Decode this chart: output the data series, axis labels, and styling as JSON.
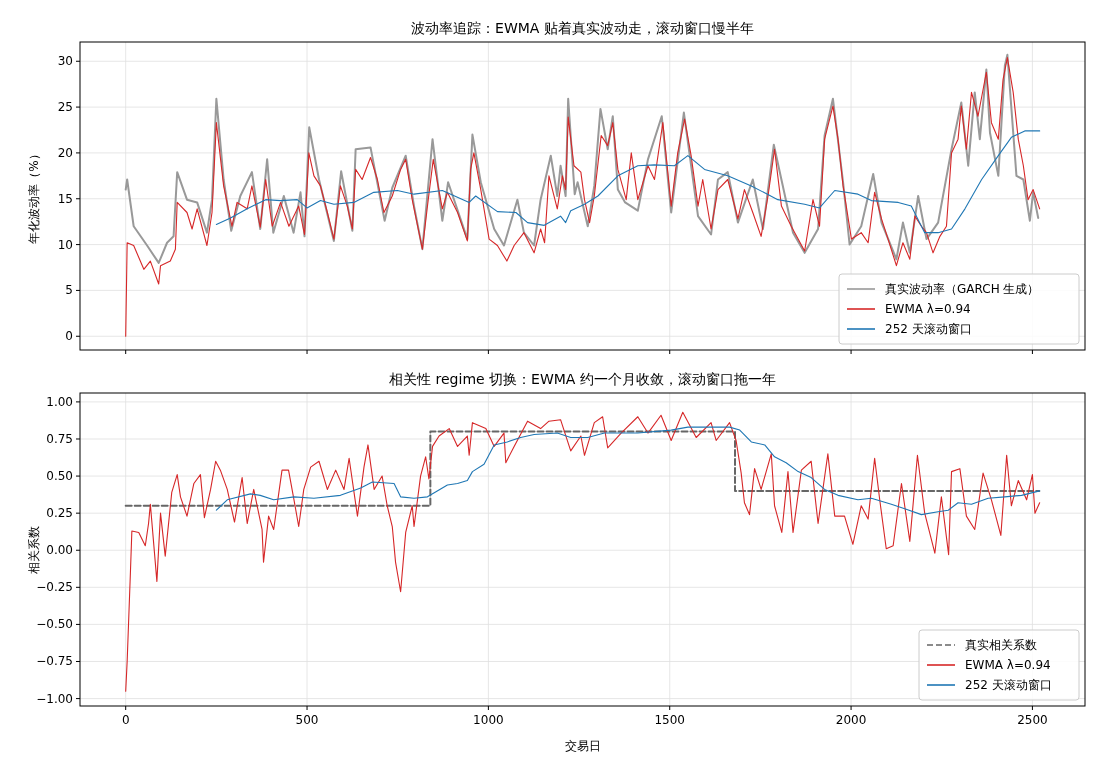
{
  "chart_data": [
    {
      "type": "line",
      "title": "波动率追踪：EWMA 贴着真实波动走，滚动窗口慢半年",
      "ylabel": "年化波动率（%）",
      "xlim": [
        -126,
        2645
      ],
      "xticks": [
        0,
        500,
        1000,
        1500,
        2000,
        2500
      ],
      "ylim": [
        -1.5,
        32.1
      ],
      "yticks": [
        0,
        5,
        10,
        15,
        20,
        25,
        30
      ],
      "grid": true,
      "legend": "bottom right",
      "tick_labels": "y",
      "line_style": "solid",
      "series": [
        {
          "name": "真实波动率（GARCH 生成）",
          "color": "#999999",
          "x": [
            0,
            4,
            22,
            59,
            91,
            114,
            132,
            142,
            169,
            197,
            224,
            238,
            250,
            270,
            291,
            316,
            348,
            371,
            390,
            407,
            436,
            463,
            482,
            493,
            506,
            533,
            574,
            594,
            625,
            634,
            675,
            714,
            735,
            772,
            795,
            818,
            846,
            873,
            889,
            942,
            956,
            979,
            1016,
            1043,
            1080,
            1098,
            1126,
            1144,
            1172,
            1190,
            1199,
            1213,
            1220,
            1238,
            1246,
            1274,
            1292,
            1309,
            1329,
            1343,
            1357,
            1377,
            1412,
            1440,
            1478,
            1504,
            1539,
            1578,
            1614,
            1633,
            1660,
            1688,
            1729,
            1757,
            1787,
            1840,
            1872,
            1909,
            1927,
            1950,
            1978,
            1996,
            2028,
            2061,
            2084,
            2125,
            2143,
            2162,
            2185,
            2208,
            2240,
            2277,
            2304,
            2323,
            2341,
            2355,
            2373,
            2383,
            2406,
            2424,
            2431,
            2456,
            2475,
            2493,
            2502,
            2516
          ],
          "values": [
            16.0,
            17.1,
            12.0,
            9.9,
            8.0,
            10.2,
            10.9,
            17.9,
            14.9,
            14.6,
            11.3,
            14.9,
            25.9,
            17.1,
            11.5,
            15.3,
            17.9,
            11.7,
            19.3,
            11.3,
            15.3,
            11.3,
            15.7,
            10.9,
            22.8,
            17.1,
            10.4,
            18.0,
            11.5,
            20.4,
            20.6,
            12.6,
            16.2,
            19.7,
            14.2,
            9.5,
            21.5,
            12.6,
            16.8,
            10.6,
            22.0,
            16.8,
            11.7,
            9.9,
            14.9,
            11.3,
            9.9,
            14.9,
            19.7,
            15.3,
            18.6,
            15.3,
            25.9,
            15.5,
            16.8,
            12.0,
            16.4,
            24.8,
            20.4,
            24.0,
            16.0,
            14.6,
            13.7,
            19.3,
            24.0,
            13.5,
            24.4,
            13.1,
            11.1,
            17.1,
            17.9,
            12.4,
            17.1,
            11.7,
            20.9,
            11.3,
            9.1,
            11.7,
            21.9,
            25.9,
            16.8,
            10.0,
            12.0,
            17.7,
            12.4,
            8.4,
            12.4,
            9.1,
            15.3,
            10.6,
            12.4,
            20.4,
            25.5,
            18.6,
            26.6,
            21.5,
            29.1,
            22.2,
            17.5,
            29.5,
            30.7,
            17.5,
            17.1,
            12.6,
            15.7,
            12.9
          ]
        },
        {
          "name": "EWMA λ=0.94",
          "color": "#d62728",
          "x": [
            0,
            4,
            22,
            50,
            68,
            91,
            96,
            123,
            137,
            142,
            169,
            183,
            197,
            224,
            238,
            250,
            270,
            293,
            307,
            335,
            348,
            371,
            386,
            404,
            427,
            450,
            477,
            493,
            505,
            519,
            537,
            556,
            574,
            592,
            611,
            625,
            634,
            652,
            675,
            694,
            712,
            735,
            758,
            772,
            790,
            818,
            832,
            848,
            873,
            887,
            915,
            942,
            951,
            960,
            979,
            1002,
            1025,
            1051,
            1071,
            1098,
            1126,
            1144,
            1155,
            1167,
            1190,
            1204,
            1213,
            1220,
            1236,
            1255,
            1265,
            1279,
            1292,
            1311,
            1329,
            1343,
            1357,
            1380,
            1394,
            1412,
            1440,
            1458,
            1481,
            1504,
            1522,
            1541,
            1559,
            1578,
            1591,
            1614,
            1633,
            1660,
            1688,
            1706,
            1729,
            1752,
            1771,
            1789,
            1808,
            1835,
            1872,
            1895,
            1913,
            1927,
            1950,
            1964,
            1978,
            2001,
            2028,
            2047,
            2065,
            2084,
            2102,
            2125,
            2143,
            2162,
            2176,
            2194,
            2208,
            2226,
            2245,
            2263,
            2277,
            2295,
            2304,
            2318,
            2332,
            2350,
            2373,
            2387,
            2406,
            2419,
            2431,
            2447,
            2461,
            2475,
            2488,
            2502,
            2520
          ],
          "values": [
            0,
            10.2,
            9.9,
            7.3,
            8.2,
            5.7,
            7.7,
            8.2,
            9.5,
            14.6,
            13.5,
            11.7,
            13.9,
            9.9,
            13.5,
            23.3,
            16.4,
            12.0,
            14.6,
            13.9,
            16.4,
            11.9,
            17.1,
            12.0,
            14.6,
            12.0,
            14.2,
            11.1,
            20.0,
            17.5,
            16.4,
            13.5,
            10.6,
            16.4,
            14.2,
            11.7,
            18.2,
            17.1,
            19.5,
            17.1,
            13.5,
            15.3,
            18.2,
            19.3,
            14.9,
            9.5,
            14.2,
            19.3,
            13.9,
            15.7,
            13.5,
            10.4,
            18.2,
            20.0,
            16.0,
            10.6,
            9.9,
            8.2,
            9.9,
            11.3,
            9.1,
            11.7,
            10.2,
            17.5,
            13.9,
            17.5,
            16.0,
            23.9,
            18.6,
            17.9,
            14.9,
            12.4,
            15.3,
            21.9,
            20.8,
            23.3,
            18.2,
            14.9,
            20.0,
            14.9,
            18.6,
            17.1,
            23.3,
            14.2,
            20.0,
            23.7,
            19.7,
            14.2,
            17.1,
            11.7,
            16.0,
            17.1,
            12.8,
            16.0,
            13.5,
            10.9,
            15.3,
            20.4,
            14.2,
            12.0,
            9.3,
            14.9,
            12.0,
            21.5,
            25.1,
            21.5,
            16.4,
            10.6,
            11.3,
            10.2,
            15.7,
            12.8,
            10.6,
            7.7,
            10.2,
            8.4,
            13.1,
            12.0,
            11.3,
            9.1,
            10.9,
            12.0,
            20.0,
            21.5,
            25.1,
            20.4,
            26.6,
            24.0,
            28.8,
            23.3,
            21.5,
            28.0,
            30.4,
            26.6,
            21.5,
            18.6,
            14.9,
            16.0,
            13.9
          ]
        },
        {
          "name": "252 天滚动窗口",
          "color": "#1f77b4",
          "x": [
            250,
            289,
            335,
            386,
            427,
            473,
            500,
            537,
            574,
            629,
            684,
            749,
            795,
            873,
            947,
            965,
            1025,
            1076,
            1108,
            1154,
            1199,
            1213,
            1227,
            1255,
            1265,
            1302,
            1357,
            1412,
            1458,
            1513,
            1550,
            1596,
            1660,
            1725,
            1798,
            1872,
            1913,
            1955,
            2019,
            2056,
            2130,
            2166,
            2203,
            2240,
            2277,
            2314,
            2360,
            2406,
            2442,
            2479,
            2520
          ],
          "values": [
            12.2,
            12.9,
            13.9,
            14.9,
            14.8,
            14.9,
            14.0,
            14.8,
            14.4,
            14.6,
            15.7,
            15.9,
            15.5,
            15.9,
            14.6,
            15.3,
            13.6,
            13.5,
            12.4,
            12.1,
            13.1,
            12.4,
            13.7,
            14.2,
            14.4,
            15.3,
            17.5,
            18.6,
            18.7,
            18.6,
            19.7,
            18.2,
            17.5,
            16.4,
            14.9,
            14.4,
            14.0,
            15.9,
            15.5,
            14.8,
            14.6,
            14.2,
            11.3,
            11.3,
            11.7,
            13.9,
            17.1,
            19.7,
            21.7,
            22.4,
            22.4
          ]
        }
      ]
    },
    {
      "type": "line",
      "title": "相关性 regime 切换：EWMA 约一个月收敛，滚动窗口拖一年",
      "xlabel": "交易日",
      "ylabel": "相关系数",
      "xlim": [
        -126,
        2645
      ],
      "xticks": [
        0,
        500,
        1000,
        1500,
        2000,
        2500
      ],
      "ylim": [
        -1.05,
        1.06
      ],
      "yticks": [
        {
          "value": -1,
          "label": "−1.00"
        },
        {
          "value": -0.75,
          "label": "−0.75"
        },
        {
          "value": -0.5,
          "label": "−0.50"
        },
        {
          "value": -0.25,
          "label": "−0.25"
        },
        {
          "value": 0,
          "label": "0.00"
        },
        {
          "value": 0.25,
          "label": "0.25"
        },
        {
          "value": 0.5,
          "label": "0.50"
        },
        {
          "value": 0.75,
          "label": "0.75"
        },
        {
          "value": 1,
          "label": "1.00"
        }
      ],
      "grid": true,
      "legend": "bottom right",
      "series": [
        {
          "name": "真实相关系数",
          "type": "step",
          "color": "#666666",
          "line_style": "dashed",
          "x": [
            0,
            840,
            1680,
            2519
          ],
          "values": [
            0.3,
            0.8,
            0.4,
            0.4
          ]
        },
        {
          "name": "EWMA λ=0.94",
          "color": "#d62728",
          "x": [
            0,
            4,
            13,
            17,
            36,
            54,
            63,
            68,
            86,
            96,
            109,
            127,
            142,
            151,
            169,
            188,
            206,
            217,
            234,
            248,
            261,
            280,
            300,
            321,
            335,
            353,
            376,
            380,
            394,
            408,
            431,
            449,
            464,
            477,
            491,
            510,
            533,
            556,
            579,
            602,
            616,
            639,
            657,
            668,
            685,
            707,
            721,
            735,
            744,
            758,
            772,
            790,
            795,
            813,
            827,
            836,
            846,
            864,
            892,
            915,
            942,
            947,
            956,
            993,
            1016,
            1043,
            1048,
            1071,
            1108,
            1144,
            1167,
            1199,
            1227,
            1255,
            1265,
            1292,
            1315,
            1329,
            1366,
            1412,
            1440,
            1476,
            1504,
            1536,
            1573,
            1614,
            1628,
            1665,
            1683,
            1697,
            1706,
            1720,
            1734,
            1752,
            1780,
            1789,
            1809,
            1826,
            1840,
            1863,
            1890,
            1909,
            1936,
            1955,
            1982,
            2005,
            2028,
            2047,
            2065,
            2079,
            2097,
            2116,
            2139,
            2162,
            2183,
            2203,
            2231,
            2249,
            2269,
            2277,
            2300,
            2318,
            2341,
            2364,
            2387,
            2413,
            2429,
            2442,
            2461,
            2484,
            2500,
            2507,
            2520
          ],
          "values": [
            -0.95,
            -0.75,
            -0.15,
            0.13,
            0.12,
            0.03,
            0.18,
            0.31,
            -0.21,
            0.25,
            -0.04,
            0.39,
            0.51,
            0.36,
            0.23,
            0.45,
            0.51,
            0.22,
            0.41,
            0.6,
            0.54,
            0.41,
            0.19,
            0.49,
            0.18,
            0.41,
            0.14,
            -0.08,
            0.23,
            0.14,
            0.54,
            0.54,
            0.34,
            0.16,
            0.41,
            0.56,
            0.6,
            0.41,
            0.54,
            0.41,
            0.62,
            0.23,
            0.56,
            0.71,
            0.41,
            0.5,
            0.3,
            0.16,
            -0.08,
            -0.28,
            0.12,
            0.3,
            0.16,
            0.5,
            0.63,
            0.48,
            0.7,
            0.77,
            0.82,
            0.7,
            0.77,
            0.64,
            0.86,
            0.82,
            0.7,
            0.79,
            0.59,
            0.7,
            0.87,
            0.82,
            0.87,
            0.88,
            0.67,
            0.77,
            0.64,
            0.86,
            0.9,
            0.69,
            0.79,
            0.9,
            0.79,
            0.91,
            0.74,
            0.93,
            0.76,
            0.86,
            0.74,
            0.86,
            0.74,
            0.52,
            0.32,
            0.24,
            0.55,
            0.41,
            0.65,
            0.3,
            0.12,
            0.53,
            0.12,
            0.54,
            0.6,
            0.18,
            0.65,
            0.23,
            0.23,
            0.04,
            0.3,
            0.21,
            0.62,
            0.34,
            0.01,
            0.03,
            0.45,
            0.06,
            0.64,
            0.25,
            -0.02,
            0.36,
            -0.03,
            0.53,
            0.55,
            0.23,
            0.14,
            0.52,
            0.34,
            0.1,
            0.64,
            0.3,
            0.47,
            0.34,
            0.51,
            0.25,
            0.32
          ]
        },
        {
          "name": "252 天滚动窗口",
          "color": "#1f77b4",
          "x": [
            250,
            280,
            344,
            371,
            408,
            464,
            519,
            592,
            648,
            680,
            740,
            758,
            795,
            832,
            859,
            887,
            915,
            942,
            956,
            988,
            1016,
            1052,
            1089,
            1126,
            1190,
            1227,
            1255,
            1274,
            1320,
            1412,
            1504,
            1550,
            1614,
            1665,
            1693,
            1725,
            1762,
            1789,
            1821,
            1854,
            1890,
            1927,
            1964,
            2019,
            2056,
            2111,
            2148,
            2194,
            2240,
            2268,
            2295,
            2332,
            2378,
            2424,
            2470,
            2520
          ],
          "values": [
            0.27,
            0.34,
            0.38,
            0.37,
            0.34,
            0.36,
            0.35,
            0.37,
            0.42,
            0.46,
            0.45,
            0.36,
            0.35,
            0.36,
            0.4,
            0.44,
            0.45,
            0.47,
            0.53,
            0.58,
            0.71,
            0.73,
            0.76,
            0.78,
            0.79,
            0.76,
            0.76,
            0.76,
            0.79,
            0.79,
            0.81,
            0.83,
            0.83,
            0.83,
            0.81,
            0.73,
            0.71,
            0.63,
            0.59,
            0.53,
            0.49,
            0.41,
            0.37,
            0.34,
            0.35,
            0.31,
            0.28,
            0.24,
            0.26,
            0.27,
            0.32,
            0.31,
            0.35,
            0.36,
            0.37,
            0.4
          ]
        }
      ]
    }
  ]
}
